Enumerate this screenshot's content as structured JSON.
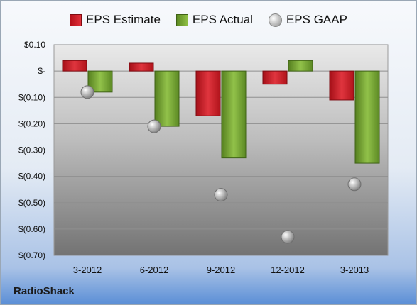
{
  "chart_data": {
    "type": "bar",
    "categories": [
      "3-2012",
      "6-2012",
      "9-2012",
      "12-2012",
      "3-2013"
    ],
    "series": [
      {
        "name": "EPS Estimate",
        "kind": "bar",
        "color": "#cc1f28",
        "values": [
          0.04,
          0.03,
          -0.17,
          -0.05,
          -0.11
        ]
      },
      {
        "name": "EPS Actual",
        "kind": "bar",
        "color": "#78a636",
        "values": [
          -0.08,
          -0.21,
          -0.33,
          0.04,
          -0.35
        ]
      },
      {
        "name": "EPS GAAP",
        "kind": "marker",
        "color": "#a8a8a8",
        "values": [
          -0.08,
          -0.21,
          -0.47,
          -0.63,
          -0.43
        ]
      }
    ],
    "yticks": [
      0.1,
      0.0,
      -0.1,
      -0.2,
      -0.3,
      -0.4,
      -0.5,
      -0.6,
      -0.7
    ],
    "ytick_labels": [
      "$0.10",
      "$-",
      "$(0.10)",
      "$(0.20)",
      "$(0.30)",
      "$(0.40)",
      "$(0.50)",
      "$(0.60)",
      "$(0.70)"
    ],
    "ylim": [
      -0.7,
      0.1
    ],
    "grid": true,
    "legend": "top-center"
  },
  "legend": {
    "estimate_label": "EPS Estimate",
    "actual_label": "EPS Actual",
    "gaap_label": "EPS GAAP"
  },
  "brand": "RadioShack"
}
